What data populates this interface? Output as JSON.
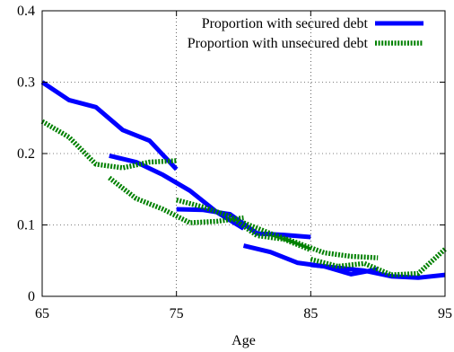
{
  "chart_data": {
    "type": "line",
    "title": "",
    "xlabel": "Age",
    "ylabel": "",
    "xlim": [
      65,
      95
    ],
    "ylim": [
      0,
      0.4
    ],
    "x_ticks": [
      65,
      75,
      85,
      95
    ],
    "x_tick_labels": [
      "65",
      "75",
      "85",
      "95"
    ],
    "y_ticks": [
      0,
      0.1,
      0.2,
      0.3,
      0.4
    ],
    "y_tick_labels": [
      "0",
      "0.1",
      "0.2",
      "0.3",
      "0.4"
    ],
    "grid": true,
    "legend_position": "top-right",
    "series": [
      {
        "name": "Proportion with secured debt",
        "color": "#0000ff",
        "style": "solid",
        "segments": [
          {
            "x": [
              65,
              67,
              69,
              71,
              73,
              75
            ],
            "y": [
              0.3,
              0.275,
              0.265,
              0.233,
              0.218,
              0.178
            ]
          },
          {
            "x": [
              70,
              72,
              74,
              76,
              78,
              80
            ],
            "y": [
              0.197,
              0.188,
              0.17,
              0.148,
              0.118,
              0.095
            ]
          },
          {
            "x": [
              75,
              77,
              79,
              81,
              83,
              85
            ],
            "y": [
              0.122,
              0.121,
              0.115,
              0.088,
              0.086,
              0.083
            ]
          },
          {
            "x": [
              80,
              82,
              84,
              86,
              88,
              90
            ],
            "y": [
              0.071,
              0.062,
              0.047,
              0.042,
              0.031,
              0.038
            ]
          },
          {
            "x": [
              85,
              87,
              89,
              91,
              93,
              95
            ],
            "y": [
              0.044,
              0.04,
              0.036,
              0.028,
              0.026,
              0.03
            ]
          }
        ]
      },
      {
        "name": "Proportion with unsecured debt",
        "color": "#008000",
        "style": "dotted",
        "segments": [
          {
            "x": [
              65,
              67,
              69,
              71,
              73,
              75
            ],
            "y": [
              0.245,
              0.223,
              0.185,
              0.18,
              0.188,
              0.19
            ]
          },
          {
            "x": [
              70,
              72,
              74,
              76,
              78,
              80
            ],
            "y": [
              0.166,
              0.137,
              0.122,
              0.103,
              0.105,
              0.11
            ]
          },
          {
            "x": [
              75,
              77,
              79,
              81,
              83,
              85
            ],
            "y": [
              0.135,
              0.125,
              0.112,
              0.085,
              0.08,
              0.065
            ]
          },
          {
            "x": [
              80,
              82,
              84,
              86,
              88,
              90
            ],
            "y": [
              0.103,
              0.088,
              0.075,
              0.061,
              0.056,
              0.054
            ]
          },
          {
            "x": [
              85,
              87,
              89,
              91,
              93,
              95
            ],
            "y": [
              0.052,
              0.042,
              0.046,
              0.03,
              0.032,
              0.066
            ]
          }
        ]
      }
    ]
  }
}
